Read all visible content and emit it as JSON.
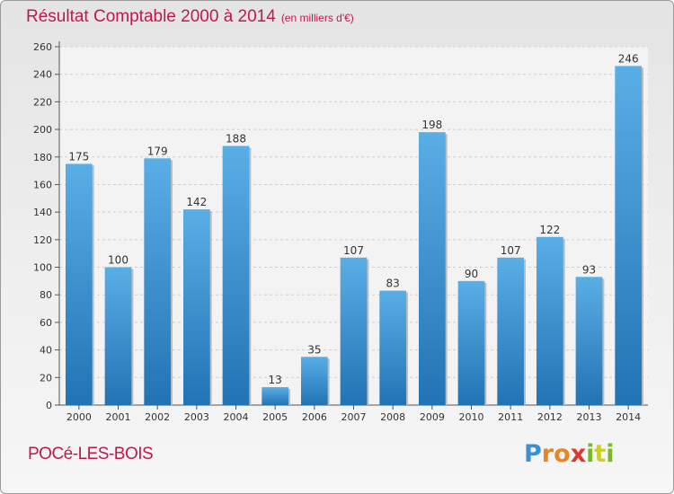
{
  "chart_data": {
    "type": "bar",
    "title": "Résultat Comptable 2000 à 2014",
    "unit_label": "(en milliers d'€)",
    "categories": [
      "2000",
      "2001",
      "2002",
      "2003",
      "2004",
      "2005",
      "2006",
      "2007",
      "2008",
      "2009",
      "2010",
      "2011",
      "2012",
      "2013",
      "2014"
    ],
    "values": [
      175,
      100,
      179,
      142,
      188,
      13,
      35,
      107,
      83,
      198,
      90,
      107,
      122,
      93,
      246
    ],
    "ylim": [
      0,
      260
    ],
    "yticks": [
      0,
      20,
      40,
      60,
      80,
      100,
      120,
      140,
      160,
      180,
      200,
      220,
      240,
      260
    ],
    "grid": true,
    "xlabel": "",
    "ylabel": "",
    "bar_color": "#3b97d8",
    "title_color": "#c0184a"
  },
  "place_name": "POCé-LES-BOIS",
  "logo": {
    "letters": [
      "P",
      "r",
      "o",
      "x",
      "i",
      "t",
      "i"
    ]
  }
}
